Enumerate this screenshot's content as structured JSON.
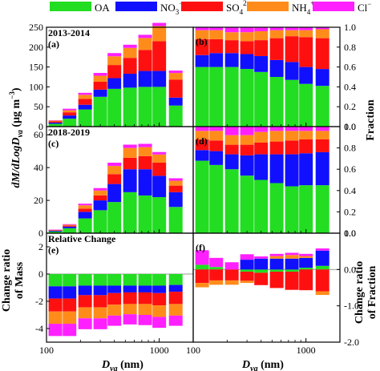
{
  "colors": {
    "OA": "#22dd22",
    "NO3": "#1010ff",
    "SO4": "#ff1010",
    "NH4": "#ff8c1a",
    "Cl": "#ff20ff"
  },
  "legend": [
    {
      "key": "OA",
      "text": "OA",
      "sup": ""
    },
    {
      "key": "NO3",
      "text": "NO",
      "sub": "3",
      "sup": "−"
    },
    {
      "key": "SO4",
      "text": "SO",
      "sub": "4",
      "sup": "2−"
    },
    {
      "key": "NH4",
      "text": "NH",
      "sub": "4",
      "sup": "+"
    },
    {
      "key": "Cl",
      "text": "Cl",
      "sup": "−"
    }
  ],
  "text": {
    "ylabel_left_main": "dM/dLogD",
    "ylabel_left_sub": "va",
    "ylabel_left_units": "(μg m",
    "ylabel_left_units_sup": "−3",
    "ylabel_left_units_close": ")",
    "ylabel_right_top": "Fraction",
    "ylabel_left_bottom_1": "Change ratio",
    "ylabel_left_bottom_2": "of Mass",
    "ylabel_right_bottom_1": "Change ratio",
    "ylabel_right_bottom_2": "of Fraction",
    "xlabel_main": "D",
    "xlabel_sub": "va",
    "xlabel_units": " (nm)"
  },
  "chart_data": [
    {
      "panel": "a",
      "label": "(a)",
      "title": "2013-2014",
      "type": "bar",
      "stacked": true,
      "x_scale": "log",
      "x": [
        120,
        160,
        220,
        300,
        400,
        550,
        750,
        1000,
        1400
      ],
      "ylim": [
        0,
        250
      ],
      "yticks": [
        0,
        50,
        100,
        150,
        200,
        250
      ],
      "series": [
        {
          "key": "OA",
          "values": [
            7,
            20,
            43,
            75,
            95,
            98,
            100,
            100,
            53
          ]
        },
        {
          "key": "NO3",
          "values": [
            3,
            8,
            12,
            18,
            27,
            35,
            40,
            40,
            20
          ]
        },
        {
          "key": "SO4",
          "values": [
            3,
            8,
            15,
            20,
            33,
            40,
            53,
            75,
            45
          ]
        },
        {
          "key": "NH4",
          "values": [
            2,
            5,
            10,
            15,
            22,
            25,
            30,
            38,
            17
          ]
        },
        {
          "key": "Cl",
          "values": [
            1,
            4,
            5,
            7,
            8,
            8,
            8,
            8,
            6
          ]
        }
      ]
    },
    {
      "panel": "b",
      "label": "(b)",
      "type": "bar",
      "stacked": true,
      "x_scale": "log",
      "x": [
        120,
        160,
        220,
        300,
        400,
        550,
        750,
        1000,
        1400
      ],
      "ylim": [
        0,
        1
      ],
      "yticks": [
        0,
        0.2,
        0.4,
        0.6,
        0.8,
        1.0
      ],
      "series": [
        {
          "key": "OA",
          "values": [
            0.6,
            0.6,
            0.6,
            0.58,
            0.55,
            0.5,
            0.47,
            0.43,
            0.41
          ]
        },
        {
          "key": "NO3",
          "values": [
            0.12,
            0.14,
            0.14,
            0.15,
            0.16,
            0.17,
            0.18,
            0.17,
            0.17
          ]
        },
        {
          "key": "SO4",
          "values": [
            0.16,
            0.14,
            0.13,
            0.13,
            0.16,
            0.22,
            0.26,
            0.3,
            0.31
          ]
        },
        {
          "key": "NH4",
          "values": [
            0.09,
            0.09,
            0.08,
            0.09,
            0.09,
            0.08,
            0.06,
            0.07,
            0.09
          ]
        },
        {
          "key": "Cl",
          "values": [
            0.03,
            0.03,
            0.05,
            0.05,
            0.04,
            0.03,
            0.03,
            0.03,
            0.02
          ]
        }
      ]
    },
    {
      "panel": "c",
      "label": "(c)",
      "title": "2018-2019",
      "type": "bar",
      "stacked": true,
      "x_scale": "log",
      "x": [
        120,
        160,
        220,
        300,
        400,
        550,
        750,
        1000,
        1400
      ],
      "ylim": [
        0,
        65
      ],
      "yticks": [
        0,
        20,
        40,
        60
      ],
      "series": [
        {
          "key": "OA",
          "values": [
            1,
            3,
            9,
            14,
            19,
            25,
            23,
            22,
            16
          ]
        },
        {
          "key": "NO3",
          "values": [
            0.5,
            1,
            4,
            6,
            11,
            14,
            16,
            13,
            9
          ]
        },
        {
          "key": "SO4",
          "values": [
            0.3,
            0.6,
            2,
            3,
            6,
            7,
            8,
            8,
            4
          ]
        },
        {
          "key": "NH4",
          "values": [
            0.2,
            0.5,
            2,
            3,
            5,
            6,
            5.5,
            5,
            3
          ]
        },
        {
          "key": "Cl",
          "values": [
            0.2,
            0.4,
            1,
            1.5,
            2,
            2,
            2,
            1.5,
            1.5
          ]
        }
      ]
    },
    {
      "panel": "d",
      "label": "(d)",
      "type": "bar",
      "stacked": true,
      "x_scale": "log",
      "x": [
        120,
        160,
        220,
        300,
        400,
        550,
        750,
        1000,
        1400
      ],
      "ylim": [
        0,
        1
      ],
      "yticks": [
        0,
        0.2,
        0.4,
        0.6,
        0.8,
        1.0
      ],
      "series": [
        {
          "key": "OA",
          "values": [
            0.68,
            0.64,
            0.6,
            0.54,
            0.5,
            0.47,
            0.44,
            0.45,
            0.45
          ]
        },
        {
          "key": "NO3",
          "values": [
            0.1,
            0.13,
            0.14,
            0.19,
            0.24,
            0.27,
            0.3,
            0.3,
            0.31
          ]
        },
        {
          "key": "SO4",
          "values": [
            0.1,
            0.1,
            0.09,
            0.1,
            0.11,
            0.12,
            0.13,
            0.13,
            0.12
          ]
        },
        {
          "key": "NH4",
          "values": [
            0.08,
            0.09,
            0.09,
            0.09,
            0.1,
            0.1,
            0.09,
            0.08,
            0.08
          ]
        },
        {
          "key": "Cl",
          "values": [
            0.04,
            0.04,
            0.08,
            0.08,
            0.05,
            0.04,
            0.04,
            0.04,
            0.04
          ]
        }
      ]
    },
    {
      "panel": "e",
      "label": "(e)",
      "title": "Relative Change",
      "type": "bar",
      "stacked": true,
      "x_scale": "log",
      "x": [
        120,
        160,
        220,
        300,
        400,
        550,
        750,
        1000,
        1400
      ],
      "ylim": [
        -5,
        3
      ],
      "yticks": [
        -4,
        -2,
        0,
        2
      ],
      "series": [
        {
          "key": "OA",
          "values": [
            -0.9,
            -0.9,
            -0.85,
            -0.85,
            -0.85,
            -0.85,
            -0.85,
            -0.85,
            -0.8
          ]
        },
        {
          "key": "NO3",
          "values": [
            -0.9,
            -0.9,
            -0.7,
            -0.7,
            -0.55,
            -0.5,
            -0.5,
            -0.55,
            -0.5
          ]
        },
        {
          "key": "SO4",
          "values": [
            -0.95,
            -0.95,
            -0.9,
            -0.9,
            -0.85,
            -0.85,
            -0.85,
            -0.9,
            -0.9
          ]
        },
        {
          "key": "NH4",
          "values": [
            -0.9,
            -0.9,
            -0.8,
            -0.8,
            -0.8,
            -0.75,
            -0.8,
            -0.85,
            -0.85
          ]
        },
        {
          "key": "Cl",
          "values": [
            -0.9,
            -0.9,
            -0.8,
            -0.8,
            -0.75,
            -0.75,
            -0.75,
            -0.8,
            -0.75
          ]
        }
      ]
    },
    {
      "panel": "f",
      "label": "(f)",
      "type": "bar",
      "stacked": true,
      "x_scale": "log",
      "x": [
        120,
        160,
        220,
        300,
        400,
        550,
        750,
        1000,
        1400
      ],
      "ylim": [
        -2,
        1
      ],
      "yticks": [
        -2,
        -1,
        0,
        1
      ],
      "series": [
        {
          "key": "OA",
          "values": [
            0.13,
            0.07,
            0.0,
            -0.06,
            -0.09,
            -0.06,
            -0.06,
            0.05,
            0.1
          ]
        },
        {
          "key": "NO3",
          "values": [
            0.0,
            0.0,
            0.0,
            0.27,
            0.3,
            0.3,
            0.3,
            0.27,
            0.42
          ]
        },
        {
          "key": "SO4",
          "values": [
            -0.37,
            -0.3,
            -0.3,
            -0.25,
            -0.34,
            -0.45,
            -0.5,
            -0.57,
            -0.6
          ]
        },
        {
          "key": "NH4",
          "values": [
            -0.12,
            -0.12,
            -0.12,
            -0.06,
            0.0,
            0.07,
            0.1,
            0.05,
            -0.1
          ]
        },
        {
          "key": "Cl",
          "values": [
            0.4,
            0.25,
            0.2,
            0.15,
            0.06,
            0.06,
            0.06,
            0.06,
            0.06
          ]
        }
      ]
    }
  ]
}
